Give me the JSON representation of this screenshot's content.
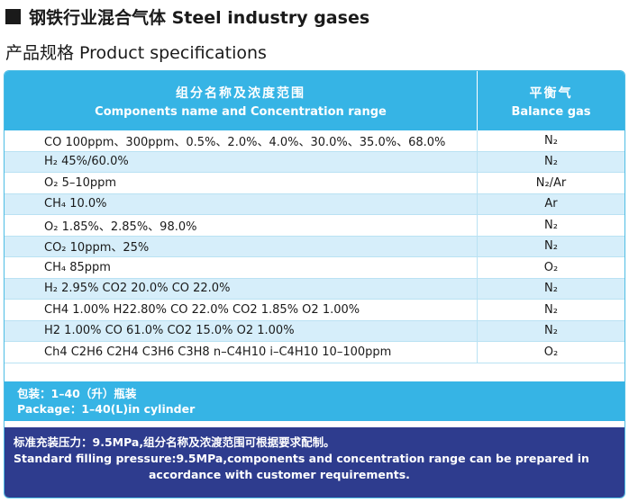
{
  "heading": {
    "title": "钢铁行业混合气体 Steel industry gases"
  },
  "subheading": {
    "title": "产品规格 Product specifications"
  },
  "table": {
    "header_components_zh": "组分名称及浓度范围",
    "header_components_en": "Components name and Concentration range",
    "header_balance_zh": "平衡气",
    "header_balance_en": "Balance gas",
    "rows": [
      {
        "component": "CO 100ppm、300ppm、0.5%、2.0%、4.0%、30.0%、35.0%、68.0%",
        "balance": "N₂"
      },
      {
        "component": "H₂ 45%/60.0%",
        "balance": "N₂"
      },
      {
        "component": "O₂ 5–10ppm",
        "balance": "N₂/Ar"
      },
      {
        "component": "CH₄ 10.0%",
        "balance": "Ar"
      },
      {
        "component": "O₂ 1.85%、2.85%、98.0%",
        "balance": "N₂"
      },
      {
        "component": "CO₂ 10ppm、25%",
        "balance": "N₂"
      },
      {
        "component": "CH₄ 85ppm",
        "balance": "O₂"
      },
      {
        "component": "H₂ 2.95% CO2 20.0%  CO 22.0%",
        "balance": "N₂"
      },
      {
        "component": "CH4 1.00% H22.80%  CO 22.0%  CO2 1.85%  O2 1.00%",
        "balance": "N₂"
      },
      {
        "component": "H2 1.00%  CO 61.0%  CO2 15.0%  O2 1.00%",
        "balance": "N₂"
      },
      {
        "component": "Ch4  C2H6  C2H4  C3H6  C3H8  n–C4H10  i–C4H10  10–100ppm",
        "balance": "O₂"
      }
    ]
  },
  "package": {
    "zh": "包装：1–40（升）瓶装",
    "en": "Package：1–40(L)in cylinder"
  },
  "pressure": {
    "zh": "标准充装压力：9.5MPa,组分名称及浓渡范围可根据要求配制。",
    "en_line1": "Standard filling pressure:9.5MPa,components and concentration range can be prepared in",
    "en_line2": "accordance with customer requirements."
  }
}
